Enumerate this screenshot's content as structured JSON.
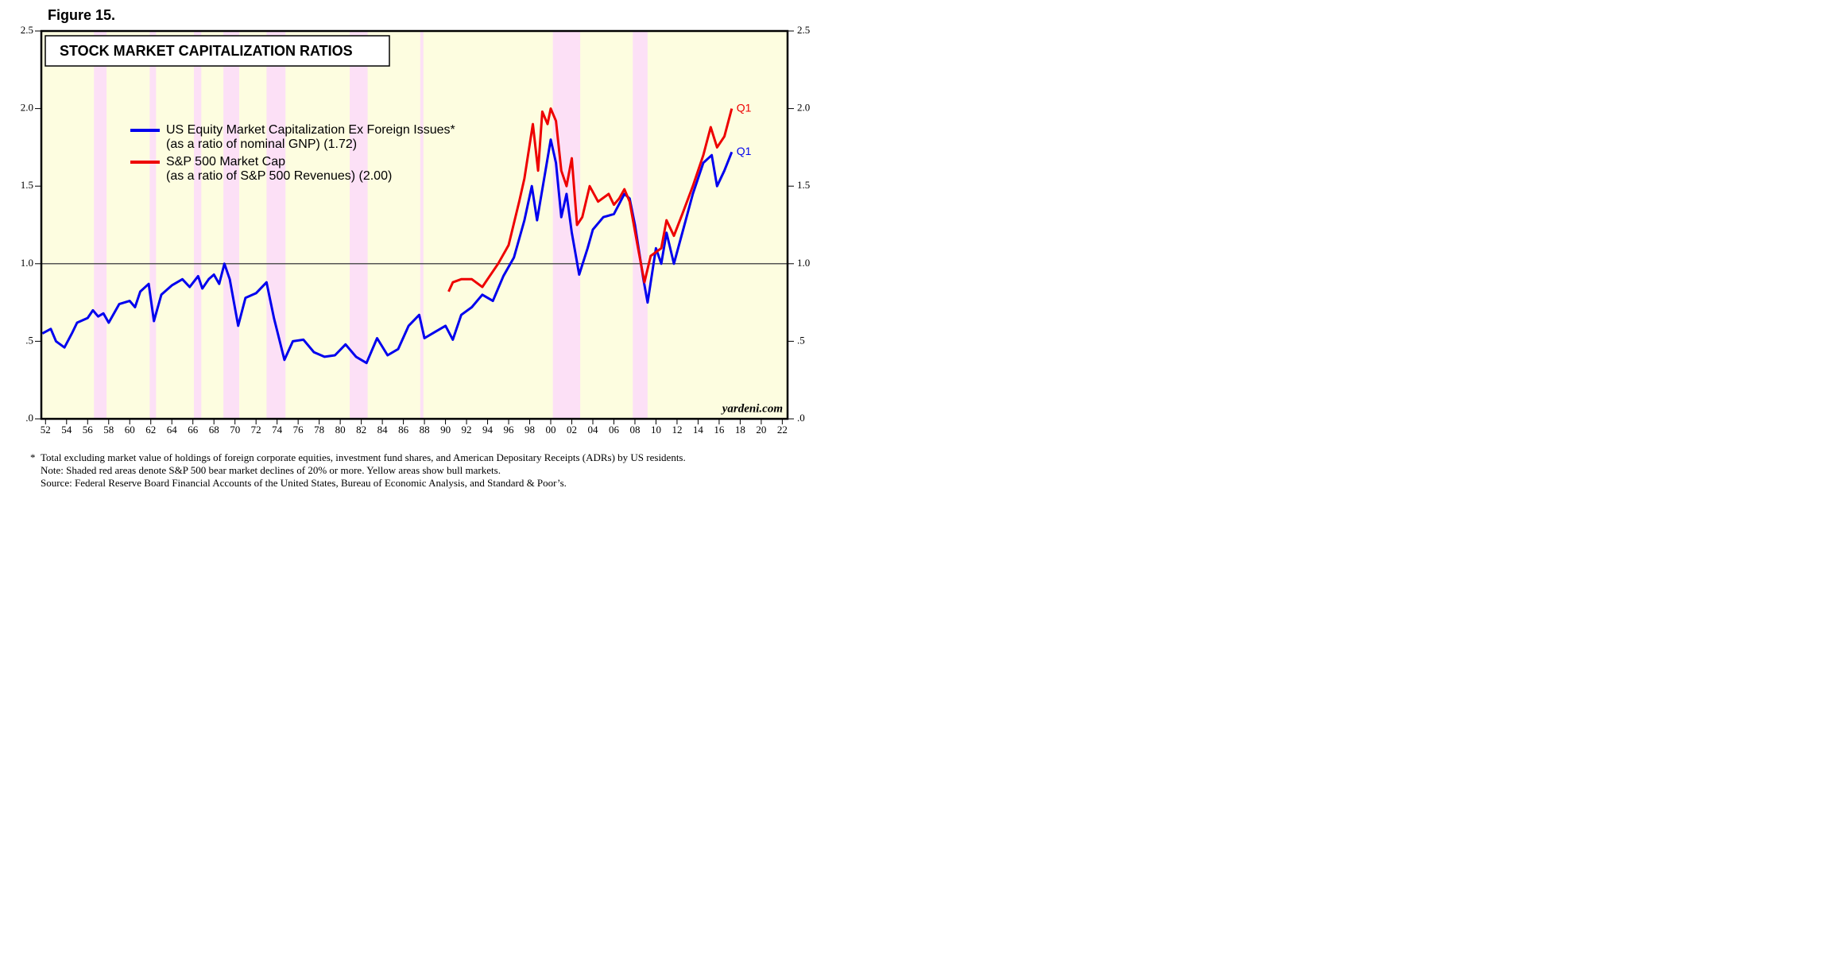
{
  "figure_label": "Figure 15.",
  "chart_data": {
    "type": "line",
    "title": "STOCK MARKET CAPITALIZATION RATIOS",
    "xlim": [
      1951.6,
      2022.5
    ],
    "ylim": [
      0,
      2.5
    ],
    "xticks": [
      {
        "value": 1952,
        "label": "52"
      },
      {
        "value": 1954,
        "label": "54"
      },
      {
        "value": 1956,
        "label": "56"
      },
      {
        "value": 1958,
        "label": "58"
      },
      {
        "value": 1960,
        "label": "60"
      },
      {
        "value": 1962,
        "label": "62"
      },
      {
        "value": 1964,
        "label": "64"
      },
      {
        "value": 1966,
        "label": "66"
      },
      {
        "value": 1968,
        "label": "68"
      },
      {
        "value": 1970,
        "label": "70"
      },
      {
        "value": 1972,
        "label": "72"
      },
      {
        "value": 1974,
        "label": "74"
      },
      {
        "value": 1976,
        "label": "76"
      },
      {
        "value": 1978,
        "label": "78"
      },
      {
        "value": 1980,
        "label": "80"
      },
      {
        "value": 1982,
        "label": "82"
      },
      {
        "value": 1984,
        "label": "84"
      },
      {
        "value": 1986,
        "label": "86"
      },
      {
        "value": 1988,
        "label": "88"
      },
      {
        "value": 1990,
        "label": "90"
      },
      {
        "value": 1992,
        "label": "92"
      },
      {
        "value": 1994,
        "label": "94"
      },
      {
        "value": 1996,
        "label": "96"
      },
      {
        "value": 1998,
        "label": "98"
      },
      {
        "value": 2000,
        "label": "00"
      },
      {
        "value": 2002,
        "label": "02"
      },
      {
        "value": 2004,
        "label": "04"
      },
      {
        "value": 2006,
        "label": "06"
      },
      {
        "value": 2008,
        "label": "08"
      },
      {
        "value": 2010,
        "label": "10"
      },
      {
        "value": 2012,
        "label": "12"
      },
      {
        "value": 2014,
        "label": "14"
      },
      {
        "value": 2016,
        "label": "16"
      },
      {
        "value": 2018,
        "label": "18"
      },
      {
        "value": 2020,
        "label": "20"
      },
      {
        "value": 2022,
        "label": "22"
      }
    ],
    "yticks": [
      {
        "value": 0,
        "label": ".0"
      },
      {
        "value": 0.5,
        "label": ".5"
      },
      {
        "value": 1,
        "label": "1.0"
      },
      {
        "value": 1.5,
        "label": "1.5"
      },
      {
        "value": 2,
        "label": "2.0"
      },
      {
        "value": 2.5,
        "label": "2.5"
      }
    ],
    "reference_line": 1,
    "bear_market_color": "#fce0f6",
    "background_color": "#fdfde0",
    "bear_markets": [
      [
        1956.6,
        1957.8
      ],
      [
        1961.9,
        1962.5
      ],
      [
        1966.1,
        1966.8
      ],
      [
        1968.9,
        1970.4
      ],
      [
        1973.0,
        1974.8
      ],
      [
        1980.9,
        1982.6
      ],
      [
        1987.6,
        1987.9
      ],
      [
        2000.2,
        2002.8
      ],
      [
        2007.8,
        2009.2
      ]
    ],
    "series": [
      {
        "name": "US Equity Market Capitalization Ex Foreign Issues*",
        "note": "(as a ratio of nominal GNP) (1.72)",
        "end_label": "Q1",
        "color": "#0000ee",
        "x": [
          1951.7,
          1952.5,
          1953,
          1953.8,
          1954.5,
          1955,
          1956,
          1956.5,
          1957,
          1957.5,
          1958,
          1959,
          1960,
          1960.5,
          1961,
          1961.8,
          1962.3,
          1963,
          1964,
          1965,
          1965.7,
          1966.5,
          1966.9,
          1967.5,
          1968,
          1968.5,
          1969,
          1969.5,
          1970.3,
          1971,
          1972,
          1973,
          1973.7,
          1974.7,
          1975.5,
          1976.5,
          1977.5,
          1978.5,
          1979.5,
          1980.5,
          1981.5,
          1982.5,
          1983.5,
          1984.5,
          1985.5,
          1986.5,
          1987.5,
          1988,
          1989,
          1990,
          1990.7,
          1991.5,
          1992.5,
          1993.5,
          1994.5,
          1995.5,
          1996.5,
          1997.5,
          1998.2,
          1998.7,
          1999.5,
          2000,
          2000.5,
          2001,
          2001.5,
          2002,
          2002.7,
          2003.5,
          2004,
          2005,
          2006,
          2007,
          2007.5,
          2008,
          2008.8,
          2009.2,
          2010,
          2010.5,
          2011,
          2011.7,
          2012.5,
          2013.5,
          2014.5,
          2015.3,
          2015.8,
          2016.5,
          2017.2
        ],
        "values": [
          0.55,
          0.58,
          0.5,
          0.46,
          0.55,
          0.62,
          0.65,
          0.7,
          0.66,
          0.68,
          0.62,
          0.74,
          0.76,
          0.72,
          0.82,
          0.87,
          0.63,
          0.8,
          0.86,
          0.9,
          0.85,
          0.92,
          0.84,
          0.9,
          0.93,
          0.87,
          1.0,
          0.9,
          0.6,
          0.78,
          0.81,
          0.88,
          0.65,
          0.38,
          0.5,
          0.51,
          0.43,
          0.4,
          0.41,
          0.48,
          0.4,
          0.36,
          0.52,
          0.41,
          0.45,
          0.6,
          0.67,
          0.52,
          0.56,
          0.6,
          0.51,
          0.67,
          0.72,
          0.8,
          0.76,
          0.92,
          1.04,
          1.28,
          1.5,
          1.28,
          1.6,
          1.8,
          1.65,
          1.3,
          1.45,
          1.2,
          0.93,
          1.1,
          1.22,
          1.3,
          1.32,
          1.45,
          1.42,
          1.25,
          0.9,
          0.75,
          1.1,
          1.0,
          1.2,
          1.0,
          1.2,
          1.45,
          1.65,
          1.7,
          1.5,
          1.6,
          1.72
        ]
      },
      {
        "name": "S&P 500 Market Cap",
        "note": "(as a ratio of S&P 500 Revenues) (2.00)",
        "end_label": "Q1",
        "color": "#ee0000",
        "x": [
          1990.3,
          1990.7,
          1991.5,
          1992.5,
          1993.5,
          1994,
          1995,
          1996,
          1997,
          1997.5,
          1998.3,
          1998.8,
          1999.2,
          1999.7,
          2000,
          2000.5,
          2001,
          2001.5,
          2002,
          2002.5,
          2003,
          2003.7,
          2004.5,
          2005.5,
          2006,
          2006.5,
          2007,
          2007.5,
          2008.3,
          2008.9,
          2009.5,
          2010.5,
          2011,
          2011.7,
          2012.5,
          2013.5,
          2014.5,
          2015.2,
          2015.8,
          2016.5,
          2017.2
        ],
        "values": [
          0.82,
          0.88,
          0.9,
          0.9,
          0.85,
          0.9,
          1.0,
          1.12,
          1.4,
          1.55,
          1.9,
          1.6,
          1.98,
          1.9,
          2.0,
          1.92,
          1.6,
          1.5,
          1.68,
          1.25,
          1.3,
          1.5,
          1.4,
          1.45,
          1.38,
          1.42,
          1.48,
          1.4,
          1.1,
          0.88,
          1.05,
          1.1,
          1.28,
          1.18,
          1.32,
          1.5,
          1.7,
          1.88,
          1.75,
          1.82,
          2.0
        ]
      }
    ],
    "credit": "yardeni.com",
    "footnote_marker": "*",
    "footnotes": [
      "Total excluding market value of holdings of foreign corporate equities, investment fund shares, and American Depositary Receipts (ADRs) by US residents.",
      "Note: Shaded red areas denote S&P 500 bear market declines of 20% or more. Yellow areas show bull markets.",
      "Source: Federal Reserve Board Financial Accounts of the United States, Bureau of Economic Analysis, and Standard & Poor’s."
    ]
  }
}
